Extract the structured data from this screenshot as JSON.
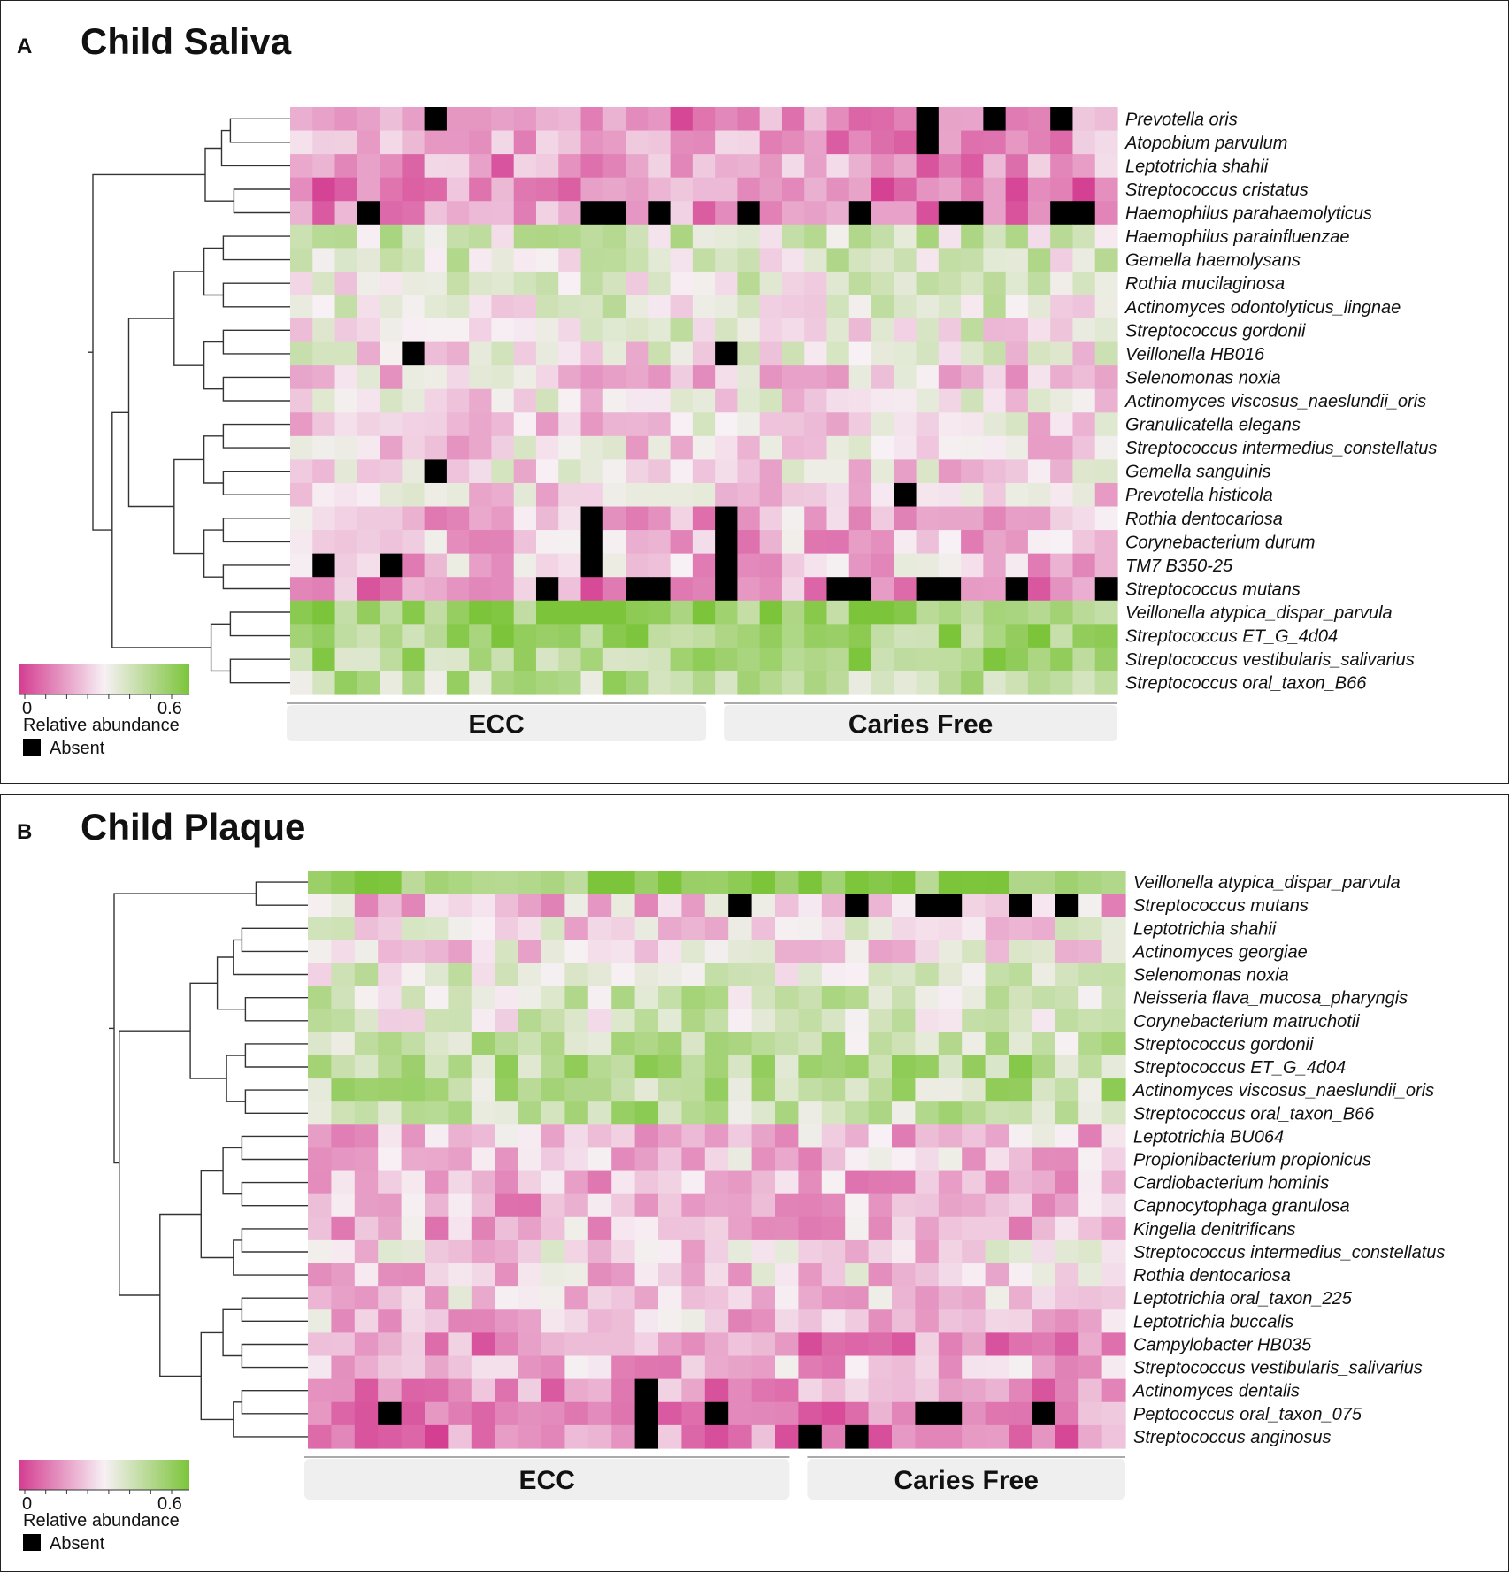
{
  "colors": {
    "low": "#d43e91",
    "mid": "#f7f0f4",
    "high": "#7cc53a",
    "absent": "#000000",
    "group_bar": "#efefef"
  },
  "chart_data": [
    {
      "type": "heatmap",
      "panel": "A",
      "title": "Child Saliva",
      "scale": {
        "min_label": "0",
        "max_label": "0.6",
        "label": "Relative abundance",
        "absent_label": "Absent"
      },
      "groups": [
        {
          "label": "ECC",
          "n": 19
        },
        {
          "label": "Caries Free",
          "n": 18
        }
      ],
      "rows": [
        {
          "name": "Prevotella oris",
          "level": 0.12,
          "absent_cols": [
            6,
            28,
            31,
            34
          ]
        },
        {
          "name": "Atopobium parvulum",
          "level": 0.16,
          "absent_cols": [
            28
          ]
        },
        {
          "name": "Leptotrichia shahii",
          "level": 0.15,
          "absent_cols": []
        },
        {
          "name": "Streptococcus cristatus",
          "level": 0.12,
          "absent_cols": []
        },
        {
          "name": "Haemophilus parahaemolyticus",
          "level": 0.14,
          "absent_cols": [
            3,
            13,
            14,
            16,
            20,
            25,
            29,
            30,
            34,
            35
          ]
        },
        {
          "name": "Haemophilus parainfluenzae",
          "level": 0.38,
          "absent_cols": []
        },
        {
          "name": "Gemella haemolysans",
          "level": 0.36,
          "absent_cols": []
        },
        {
          "name": "Rothia mucilaginosa",
          "level": 0.34,
          "absent_cols": []
        },
        {
          "name": "Actinomyces odontolyticus_lingnae",
          "level": 0.34,
          "absent_cols": []
        },
        {
          "name": "Streptococcus gordonii",
          "level": 0.32,
          "absent_cols": []
        },
        {
          "name": "Veillonella HB016",
          "level": 0.3,
          "absent_cols": [
            5,
            19
          ]
        },
        {
          "name": "Selenomonas noxia",
          "level": 0.24,
          "absent_cols": []
        },
        {
          "name": "Actinomyces viscosus_naeslundii_oris",
          "level": 0.28,
          "absent_cols": []
        },
        {
          "name": "Granulicatella elegans",
          "level": 0.27,
          "absent_cols": []
        },
        {
          "name": "Streptococcus intermedius_constellatus",
          "level": 0.26,
          "absent_cols": []
        },
        {
          "name": "Gemella sanguinis",
          "level": 0.27,
          "absent_cols": [
            6
          ]
        },
        {
          "name": "Prevotella histicola",
          "level": 0.26,
          "absent_cols": [
            27
          ]
        },
        {
          "name": "Rothia dentocariosa",
          "level": 0.2,
          "absent_cols": [
            13,
            19
          ]
        },
        {
          "name": "Corynebacterium durum",
          "level": 0.2,
          "absent_cols": [
            13,
            19
          ]
        },
        {
          "name": "TM7 B350-25",
          "level": 0.22,
          "absent_cols": [
            1,
            4,
            13,
            19
          ]
        },
        {
          "name": "Streptococcus mutans",
          "level": 0.14,
          "absent_cols": [
            11,
            15,
            16,
            19,
            24,
            25,
            28,
            29,
            32,
            36
          ]
        },
        {
          "name": "Veillonella atypica_dispar_parvula",
          "level": 0.54,
          "absent_cols": []
        },
        {
          "name": "Streptococcus ET_G_4d04",
          "level": 0.5,
          "absent_cols": []
        },
        {
          "name": "Streptococcus vestibularis_salivarius",
          "level": 0.48,
          "absent_cols": []
        },
        {
          "name": "Streptococcus oral_taxon_B66",
          "level": 0.44,
          "absent_cols": []
        }
      ]
    },
    {
      "type": "heatmap",
      "panel": "B",
      "title": "Child Plaque",
      "scale": {
        "min_label": "0",
        "max_label": "0.6",
        "label": "Relative abundance",
        "absent_label": "Absent"
      },
      "groups": [
        {
          "label": "ECC",
          "n": 21
        },
        {
          "label": "Caries Free",
          "n": 14
        }
      ],
      "rows": [
        {
          "name": "Veillonella atypica_dispar_parvula",
          "level": 0.55,
          "absent_cols": []
        },
        {
          "name": "Streptococcus mutans",
          "level": 0.22,
          "absent_cols": [
            18,
            23,
            26,
            27,
            30,
            32
          ]
        },
        {
          "name": "Leptotrichia shahii",
          "level": 0.28,
          "absent_cols": []
        },
        {
          "name": "Actinomyces georgiae",
          "level": 0.28,
          "absent_cols": []
        },
        {
          "name": "Selenomonas noxia",
          "level": 0.36,
          "absent_cols": []
        },
        {
          "name": "Neisseria flava_mucosa_pharyngis",
          "level": 0.38,
          "absent_cols": []
        },
        {
          "name": "Corynebacterium matruchotii",
          "level": 0.36,
          "absent_cols": []
        },
        {
          "name": "Streptococcus gordonii",
          "level": 0.4,
          "absent_cols": []
        },
        {
          "name": "Streptococcus ET_G_4d04",
          "level": 0.46,
          "absent_cols": []
        },
        {
          "name": "Actinomyces viscosus_naeslundii_oris",
          "level": 0.44,
          "absent_cols": []
        },
        {
          "name": "Streptococcus oral_taxon_B66",
          "level": 0.44,
          "absent_cols": []
        },
        {
          "name": "Leptotrichia BU064",
          "level": 0.22,
          "absent_cols": []
        },
        {
          "name": "Propionibacterium propionicus",
          "level": 0.22,
          "absent_cols": []
        },
        {
          "name": "Cardiobacterium hominis",
          "level": 0.2,
          "absent_cols": []
        },
        {
          "name": "Capnocytophaga granulosa",
          "level": 0.2,
          "absent_cols": []
        },
        {
          "name": "Kingella denitrificans",
          "level": 0.2,
          "absent_cols": []
        },
        {
          "name": "Streptococcus intermedius_constellatus",
          "level": 0.26,
          "absent_cols": []
        },
        {
          "name": "Rothia dentocariosa",
          "level": 0.24,
          "absent_cols": []
        },
        {
          "name": "Leptotrichia oral_taxon_225",
          "level": 0.24,
          "absent_cols": []
        },
        {
          "name": "Leptotrichia buccalis",
          "level": 0.22,
          "absent_cols": []
        },
        {
          "name": "Campylobacter HB035",
          "level": 0.14,
          "absent_cols": []
        },
        {
          "name": "Streptococcus vestibularis_salivarius",
          "level": 0.2,
          "absent_cols": []
        },
        {
          "name": "Actinomyces dentalis",
          "level": 0.14,
          "absent_cols": [
            14
          ]
        },
        {
          "name": "Peptococcus oral_taxon_075",
          "level": 0.12,
          "absent_cols": [
            3,
            14,
            17,
            26,
            27,
            31
          ]
        },
        {
          "name": "Streptococcus anginosus",
          "level": 0.12,
          "absent_cols": [
            14,
            21,
            23
          ]
        }
      ]
    }
  ]
}
